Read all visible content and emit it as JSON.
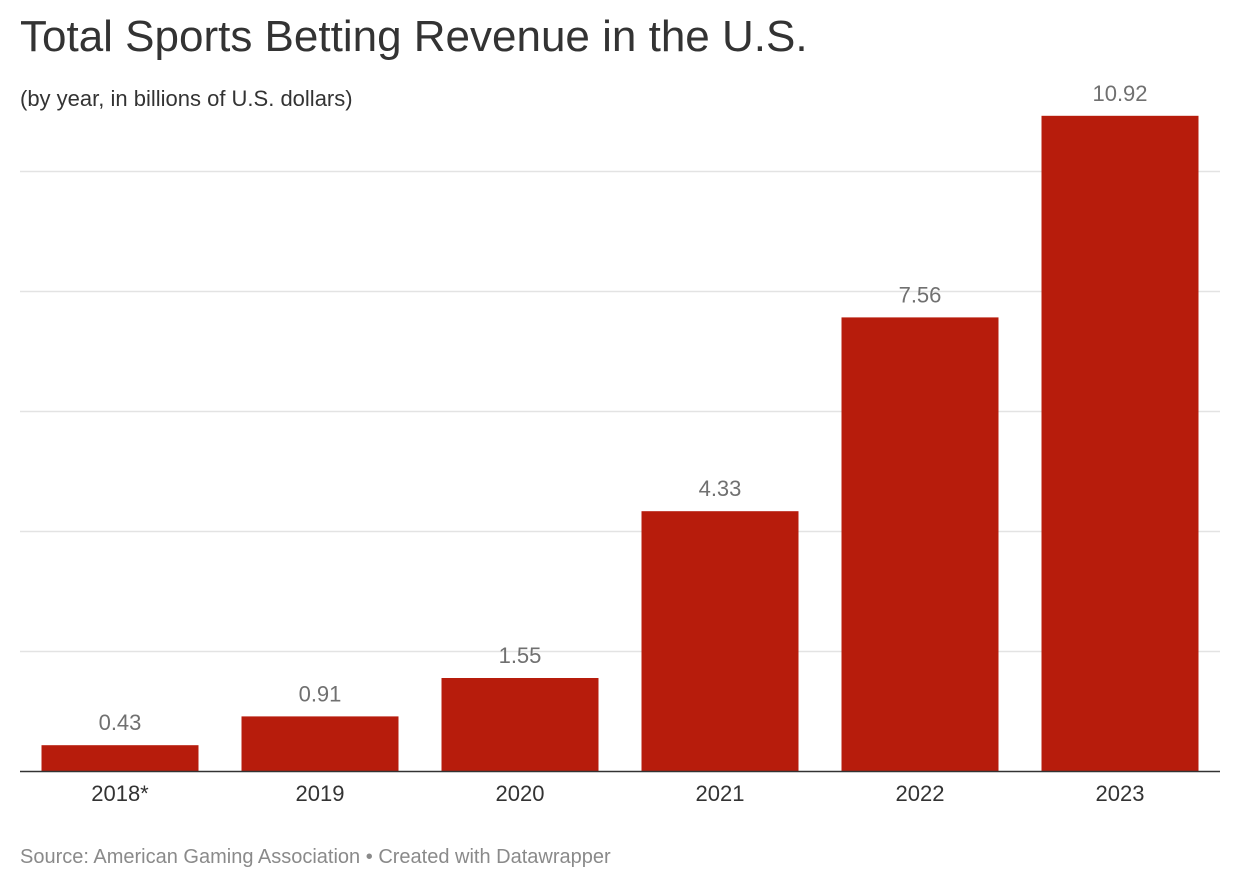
{
  "title": "Total Sports Betting Revenue in the U.S.",
  "subtitle": "(by year, in billions of U.S. dollars)",
  "footer": {
    "source": "Source: American Gaming Association",
    "separator": "•",
    "credit": "Created with Datawrapper"
  },
  "colors": {
    "bar": "#b71c0c",
    "grid": "#e3e3e3",
    "axis": "#333333"
  },
  "chart_data": {
    "type": "bar",
    "categories": [
      "2018*",
      "2019",
      "2020",
      "2021",
      "2022",
      "2023"
    ],
    "values": [
      0.43,
      0.91,
      1.55,
      4.33,
      7.56,
      10.92
    ],
    "data_labels": [
      "0.43",
      "0.91",
      "1.55",
      "4.33",
      "7.56",
      "10.92"
    ],
    "title": "Total Sports Betting Revenue in the U.S.",
    "subtitle": "(by year, in billions of U.S. dollars)",
    "xlabel": "",
    "ylabel": "",
    "ylim": [
      0,
      11
    ],
    "grid": true,
    "y_axis_labels": false,
    "legend": "none"
  }
}
